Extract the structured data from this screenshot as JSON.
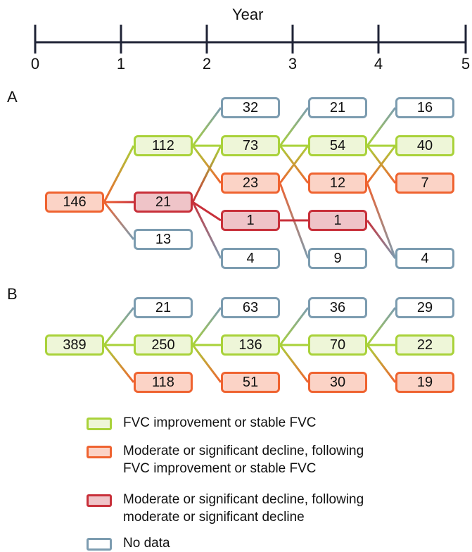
{
  "timeline": {
    "title": "Year",
    "ticks": [
      "0",
      "1",
      "2",
      "3",
      "4",
      "5"
    ]
  },
  "colors": {
    "green": {
      "border": "#a9d23a",
      "fill": "#eef6d8"
    },
    "orange": {
      "border": "#ef6330",
      "fill": "#fbd3c6"
    },
    "red": {
      "border": "#c8303a",
      "fill": "#efc4c8"
    },
    "blue": {
      "border": "#7c9cb0",
      "fill": "#ffffff"
    },
    "axis": "#1f2336"
  },
  "panels": [
    {
      "label": "A",
      "nodes": [
        {
          "id": "a0",
          "value": "146",
          "cat": "orange",
          "year": 0,
          "row": 3
        },
        {
          "id": "a1g",
          "value": "112",
          "cat": "green",
          "year": 1,
          "row": 1
        },
        {
          "id": "a1r",
          "value": "21",
          "cat": "red",
          "year": 1,
          "row": 3
        },
        {
          "id": "a1n",
          "value": "13",
          "cat": "blue",
          "year": 1,
          "row": 5
        },
        {
          "id": "a2n1",
          "value": "32",
          "cat": "blue",
          "year": 2,
          "row": 0
        },
        {
          "id": "a2g",
          "value": "73",
          "cat": "green",
          "year": 2,
          "row": 1
        },
        {
          "id": "a2o",
          "value": "23",
          "cat": "orange",
          "year": 2,
          "row": 2
        },
        {
          "id": "a2r",
          "value": "1",
          "cat": "red",
          "year": 2,
          "row": 4
        },
        {
          "id": "a2n2",
          "value": "4",
          "cat": "blue",
          "year": 2,
          "row": 6
        },
        {
          "id": "a3n1",
          "value": "21",
          "cat": "blue",
          "year": 3,
          "row": 0
        },
        {
          "id": "a3g",
          "value": "54",
          "cat": "green",
          "year": 3,
          "row": 1
        },
        {
          "id": "a3o",
          "value": "12",
          "cat": "orange",
          "year": 3,
          "row": 2
        },
        {
          "id": "a3r",
          "value": "1",
          "cat": "red",
          "year": 3,
          "row": 4
        },
        {
          "id": "a3n2",
          "value": "9",
          "cat": "blue",
          "year": 3,
          "row": 6
        },
        {
          "id": "a4n1",
          "value": "16",
          "cat": "blue",
          "year": 4,
          "row": 0
        },
        {
          "id": "a4g",
          "value": "40",
          "cat": "green",
          "year": 4,
          "row": 1
        },
        {
          "id": "a4o",
          "value": "7",
          "cat": "orange",
          "year": 4,
          "row": 2
        },
        {
          "id": "a4n2",
          "value": "4",
          "cat": "blue",
          "year": 4,
          "row": 6
        }
      ],
      "edges": [
        [
          "a0",
          "a1g"
        ],
        [
          "a0",
          "a1r"
        ],
        [
          "a0",
          "a1n"
        ],
        [
          "a1g",
          "a2n1"
        ],
        [
          "a1g",
          "a2g"
        ],
        [
          "a1g",
          "a2o"
        ],
        [
          "a1r",
          "a2g"
        ],
        [
          "a1r",
          "a2r"
        ],
        [
          "a1r",
          "a2n2"
        ],
        [
          "a2g",
          "a3n1"
        ],
        [
          "a2g",
          "a3g"
        ],
        [
          "a2g",
          "a3o"
        ],
        [
          "a2o",
          "a3g"
        ],
        [
          "a2o",
          "a3n2"
        ],
        [
          "a2r",
          "a3r"
        ],
        [
          "a3g",
          "a4n1"
        ],
        [
          "a3g",
          "a4g"
        ],
        [
          "a3g",
          "a4o"
        ],
        [
          "a3o",
          "a4g"
        ],
        [
          "a3o",
          "a4n2"
        ],
        [
          "a3r",
          "a4n2"
        ]
      ]
    },
    {
      "label": "B",
      "nodes": [
        {
          "id": "b0",
          "value": "389",
          "cat": "green",
          "year": 0,
          "row": 1
        },
        {
          "id": "b1n",
          "value": "21",
          "cat": "blue",
          "year": 1,
          "row": 0
        },
        {
          "id": "b1g",
          "value": "250",
          "cat": "green",
          "year": 1,
          "row": 1
        },
        {
          "id": "b1o",
          "value": "118",
          "cat": "orange",
          "year": 1,
          "row": 2
        },
        {
          "id": "b2n",
          "value": "63",
          "cat": "blue",
          "year": 2,
          "row": 0
        },
        {
          "id": "b2g",
          "value": "136",
          "cat": "green",
          "year": 2,
          "row": 1
        },
        {
          "id": "b2o",
          "value": "51",
          "cat": "orange",
          "year": 2,
          "row": 2
        },
        {
          "id": "b3n",
          "value": "36",
          "cat": "blue",
          "year": 3,
          "row": 0
        },
        {
          "id": "b3g",
          "value": "70",
          "cat": "green",
          "year": 3,
          "row": 1
        },
        {
          "id": "b3o",
          "value": "30",
          "cat": "orange",
          "year": 3,
          "row": 2
        },
        {
          "id": "b4n",
          "value": "29",
          "cat": "blue",
          "year": 4,
          "row": 0
        },
        {
          "id": "b4g",
          "value": "22",
          "cat": "green",
          "year": 4,
          "row": 1
        },
        {
          "id": "b4o",
          "value": "19",
          "cat": "orange",
          "year": 4,
          "row": 2
        }
      ],
      "edges": [
        [
          "b0",
          "b1n"
        ],
        [
          "b0",
          "b1g"
        ],
        [
          "b0",
          "b1o"
        ],
        [
          "b1g",
          "b2n"
        ],
        [
          "b1g",
          "b2g"
        ],
        [
          "b1g",
          "b2o"
        ],
        [
          "b2g",
          "b3n"
        ],
        [
          "b2g",
          "b3g"
        ],
        [
          "b2g",
          "b3o"
        ],
        [
          "b3g",
          "b4n"
        ],
        [
          "b3g",
          "b4g"
        ],
        [
          "b3g",
          "b4o"
        ]
      ]
    }
  ],
  "legend": [
    {
      "cat": "green",
      "lines": [
        "FVC improvement or stable FVC"
      ]
    },
    {
      "cat": "orange",
      "lines": [
        "Moderate or significant decline, following",
        "FVC improvement or stable FVC"
      ]
    },
    {
      "cat": "red",
      "lines": [
        "Moderate or significant decline, following",
        "moderate or significant decline"
      ]
    },
    {
      "cat": "blue",
      "lines": [
        "No data"
      ]
    }
  ]
}
